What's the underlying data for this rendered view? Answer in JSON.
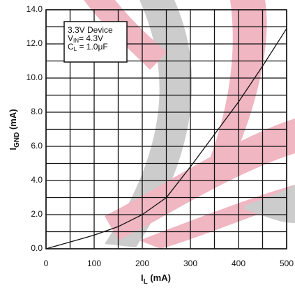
{
  "chart_data": {
    "type": "line",
    "x_label": {
      "main": "I",
      "sub": "L",
      "rest": " (mA)"
    },
    "y_label": {
      "main": "I",
      "sub": "GND",
      "rest": " (mA)"
    },
    "annotation": [
      {
        "main": "3.3V Device"
      },
      {
        "main": "V",
        "sub": "IN",
        "rest": "= 4.3V"
      },
      {
        "main": "C",
        "sub": "L",
        "rest": " = 1.0μF"
      }
    ],
    "x": [
      0,
      50,
      100,
      150,
      200,
      250,
      300,
      350,
      400,
      450,
      500
    ],
    "series": [
      {
        "color": "#111111",
        "values": [
          0,
          0.4,
          0.8,
          1.3,
          2.0,
          3.0,
          4.8,
          6.7,
          8.6,
          10.7,
          12.9
        ]
      }
    ],
    "xlim": [
      0,
      500
    ],
    "xticks": [
      0,
      100,
      200,
      300,
      400,
      500
    ],
    "ylim": [
      0,
      14
    ],
    "yticks": [
      {
        "value": 0,
        "label": "0.0"
      },
      {
        "value": 2,
        "label": "2.0"
      },
      {
        "value": 4,
        "label": "4.0"
      },
      {
        "value": 6,
        "label": "6.0"
      },
      {
        "value": 8,
        "label": "8.0"
      },
      {
        "value": 10,
        "label": "10.0"
      },
      {
        "value": 12,
        "label": "12.0"
      },
      {
        "value": 14,
        "label": "14.0"
      }
    ],
    "grid": true
  }
}
